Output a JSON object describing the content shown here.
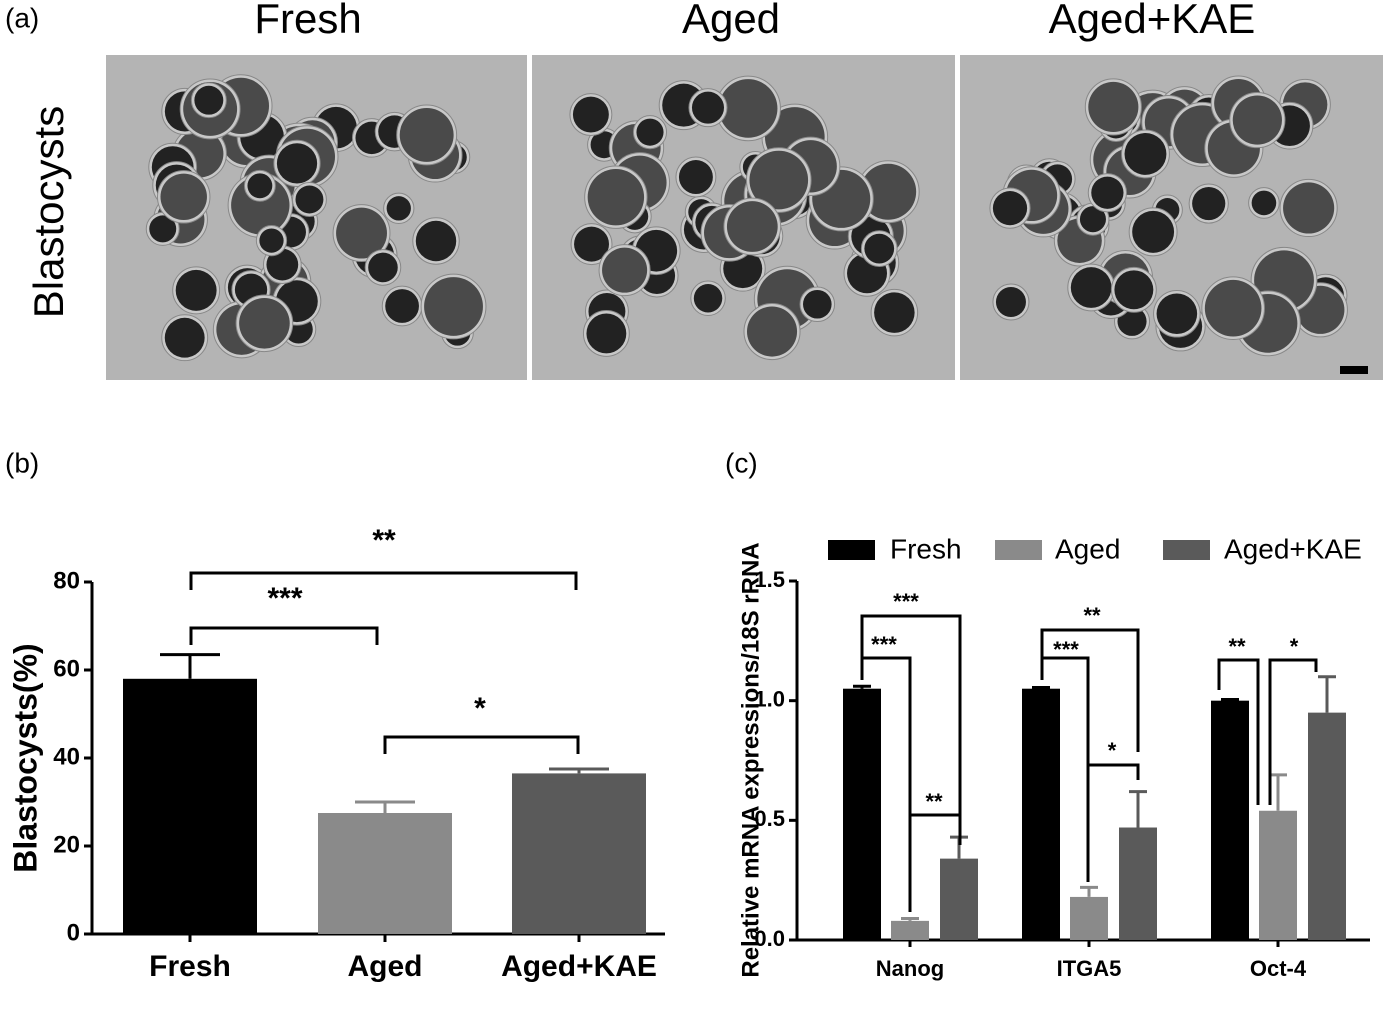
{
  "panel_a": {
    "label": "(a)",
    "columns": [
      "Fresh",
      "Aged",
      "Aged+KAE"
    ],
    "row_label": "Blastocysts"
  },
  "chart_data": [
    {
      "type": "bar",
      "panel_label": "(b)",
      "ylabel": "Blastocysts(%)",
      "categories": [
        "Fresh",
        "Aged",
        "Aged+KAE"
      ],
      "values": [
        58,
        27.5,
        36.5
      ],
      "errors": [
        5.5,
        2.5,
        1
      ],
      "colors": [
        "#000000",
        "#8a8a8a",
        "#5a5a5a"
      ],
      "ylim": [
        0,
        80
      ],
      "yticks": [
        0,
        20,
        40,
        60,
        80
      ],
      "annotations": [
        "**",
        "***",
        "*"
      ]
    },
    {
      "type": "grouped-bar",
      "panel_label": "(c)",
      "ylabel": "Relative mRNA expressions/18S rRNA",
      "categories": [
        "Nanog",
        "ITGA5",
        "Oct-4"
      ],
      "series": [
        {
          "name": "Fresh",
          "color": "#000000",
          "values": [
            1.05,
            1.05,
            1.0
          ],
          "errors": [
            0.01,
            0.005,
            0.005
          ]
        },
        {
          "name": "Aged",
          "color": "#8a8a8a",
          "values": [
            0.08,
            0.18,
            0.54
          ],
          "errors": [
            0.01,
            0.04,
            0.15
          ]
        },
        {
          "name": "Aged+KAE",
          "color": "#5a5a5a",
          "values": [
            0.34,
            0.47,
            0.95
          ],
          "errors": [
            0.09,
            0.15,
            0.15
          ]
        }
      ],
      "ylim": [
        0,
        1.5
      ],
      "yticks": [
        {
          "value": 0,
          "label": "0.0"
        },
        {
          "value": 0.5,
          "label": "0.5"
        },
        {
          "value": 1.0,
          "label": "1.0"
        },
        {
          "value": 1.5,
          "label": "1.5"
        }
      ],
      "legend": "top",
      "annotations": [
        "***",
        "***",
        "**",
        "**",
        "***",
        "*",
        "**",
        "*"
      ]
    }
  ]
}
